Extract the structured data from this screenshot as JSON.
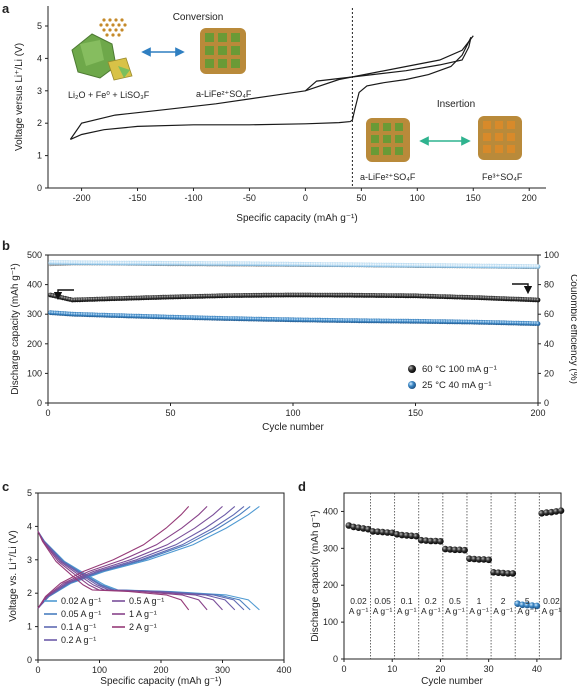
{
  "panels": [
    {
      "letter": "a",
      "chart_data": {
        "type": "line",
        "xlabel": "Specific capacity (mAh g⁻¹)",
        "ylabel": "Voltage versus Li⁺/Li (V)",
        "xlim": [
          -230,
          215
        ],
        "ylim": [
          0,
          5.6
        ],
        "xticks": [
          "-200",
          "-150",
          "-100",
          "-50",
          "0",
          "50",
          "100",
          "150",
          "200"
        ],
        "yticks": [
          "0",
          "1",
          "2",
          "3",
          "4",
          "5"
        ],
        "divider_x": 42,
        "labels": {
          "conversion": "Conversion",
          "insertion": "Insertion",
          "conv_products": "Li₂O + Fe⁰ + LiSO₃F",
          "conv_start": "a-LiFe²⁺SO₄F",
          "ins_start": "a-LiFe²⁺SO₄F",
          "ins_end": "Fe³⁺SO₄F"
        },
        "series": [
          {
            "segment": "conversion discharge",
            "x": [
              42,
              40,
              30,
              0,
              -50,
              -100,
              -150,
              -180,
              -200,
              -210
            ],
            "y": [
              2.1,
              2.05,
              2.02,
              1.98,
              1.95,
              1.95,
              1.9,
              1.8,
              1.65,
              1.5
            ]
          },
          {
            "segment": "conversion charge",
            "x": [
              -210,
              -200,
              -170,
              -130,
              -80,
              -30,
              0,
              30,
              60,
              90,
              120,
              140,
              150
            ],
            "y": [
              1.5,
              2.0,
              2.25,
              2.4,
              2.6,
              2.85,
              3.0,
              3.35,
              3.55,
              3.75,
              3.95,
              4.25,
              4.7
            ]
          },
          {
            "segment": "insertion charge",
            "x": [
              42,
              44,
              48,
              55,
              70,
              90,
              110,
              130,
              140,
              148
            ],
            "y": [
              2.1,
              2.4,
              2.95,
              3.15,
              3.25,
              3.35,
              3.5,
              3.75,
              4.1,
              4.65
            ]
          },
          {
            "segment": "insertion discharge",
            "x": [
              148,
              146,
              140,
              120,
              90,
              60,
              30,
              10,
              0
            ],
            "y": [
              4.65,
              4.35,
              3.95,
              3.8,
              3.62,
              3.5,
              3.38,
              3.3,
              3.0
            ]
          }
        ]
      }
    },
    {
      "letter": "b",
      "chart_data": {
        "type": "scatter",
        "xlabel": "Cycle number",
        "ylabel": "Discharge capacity (mAh g⁻¹)",
        "ylabel_right": "Coulombic efficiency (%)",
        "xlim": [
          0,
          200
        ],
        "ylim": [
          0,
          500
        ],
        "ylim_right": [
          0,
          100
        ],
        "xticks": [
          "0",
          "50",
          "100",
          "150",
          "200"
        ],
        "yticks": [
          "0",
          "100",
          "200",
          "300",
          "400",
          "500"
        ],
        "yticks_right": [
          "0",
          "20",
          "40",
          "60",
          "80",
          "100"
        ],
        "legend_position": "bottom-right",
        "series": [
          {
            "name": "60 °C 100 mA g⁻¹",
            "color": "#111111",
            "x": [
              1,
              10,
              25,
              50,
              75,
              100,
              125,
              150,
              175,
              200
            ],
            "capacity": [
              365,
              348,
              352,
              358,
              363,
              365,
              364,
              362,
              356,
              348
            ],
            "efficiency": [
              94.0,
              94.5,
              94.5,
              94.0,
              93.8,
              93.5,
              93.3,
              92.8,
              92.5,
              92.0
            ]
          },
          {
            "name": "25 °C 40 mA g⁻¹",
            "color": "#3b86c4",
            "x": [
              1,
              10,
              25,
              50,
              75,
              100,
              125,
              150,
              175,
              200
            ],
            "capacity": [
              305,
              300,
              296,
              290,
              285,
              281,
              278,
              276,
              273,
              268
            ],
            "efficiency": [
              95.0,
              94.8,
              94.6,
              94.4,
              94.2,
              93.8,
              93.4,
              93.0,
              92.6,
              92.2
            ]
          }
        ]
      }
    },
    {
      "letter": "c",
      "chart_data": {
        "type": "line",
        "xlabel": "Specific capacity (mAh g⁻¹)",
        "ylabel": "Voltage vs. Li⁺/Li (V)",
        "xlim": [
          0,
          400
        ],
        "ylim": [
          0,
          5
        ],
        "xticks": [
          "0",
          "100",
          "200",
          "300",
          "400"
        ],
        "yticks": [
          "0",
          "1",
          "2",
          "3",
          "4",
          "5"
        ],
        "series": [
          {
            "name": "0.02 A g⁻¹",
            "color": "#4f9ad2",
            "cap": 360
          },
          {
            "name": "0.05 A g⁻¹",
            "color": "#4a7fbf",
            "cap": 345
          },
          {
            "name": "0.1 A g⁻¹",
            "color": "#5f6ab3",
            "cap": 335
          },
          {
            "name": "0.2 A g⁻¹",
            "color": "#6c5ca8",
            "cap": 320
          },
          {
            "name": "0.5 A g⁻¹",
            "color": "#7a4f9a",
            "cap": 300
          },
          {
            "name": "1 A g⁻¹",
            "color": "#88438a",
            "cap": 275
          },
          {
            "name": "2 A g⁻¹",
            "color": "#963a78",
            "cap": 245
          }
        ]
      }
    },
    {
      "letter": "d",
      "chart_data": {
        "type": "scatter",
        "xlabel": "Cycle number",
        "ylabel": "Discharge capacity (mAh g⁻¹)",
        "xlim": [
          0,
          45
        ],
        "ylim": [
          0,
          450
        ],
        "xticks": [
          "0",
          "10",
          "20",
          "30",
          "40"
        ],
        "yticks": [
          "0",
          "100",
          "200",
          "300",
          "400"
        ],
        "groups": [
          {
            "rate": "0.02",
            "unit": "A g⁻¹",
            "cycles": [
              1,
              2,
              3,
              4,
              5
            ],
            "values": [
              362,
              358,
              356,
              354,
              352
            ],
            "color": "#111111"
          },
          {
            "rate": "0.05",
            "unit": "A g⁻¹",
            "cycles": [
              6,
              7,
              8,
              9,
              10
            ],
            "values": [
              346,
              345,
              344,
              343,
              342
            ],
            "color": "#111111"
          },
          {
            "rate": "0.1",
            "unit": "A g⁻¹",
            "cycles": [
              11,
              12,
              13,
              14,
              15
            ],
            "values": [
              338,
              336,
              335,
              334,
              333
            ],
            "color": "#111111"
          },
          {
            "rate": "0.2",
            "unit": "A g⁻¹",
            "cycles": [
              16,
              17,
              18,
              19,
              20
            ],
            "values": [
              322,
              321,
              320,
              320,
              319
            ],
            "color": "#111111"
          },
          {
            "rate": "0.5",
            "unit": "A g⁻¹",
            "cycles": [
              21,
              22,
              23,
              24,
              25
            ],
            "values": [
              298,
              297,
              296,
              296,
              295
            ],
            "color": "#111111"
          },
          {
            "rate": "1",
            "unit": "A g⁻¹",
            "cycles": [
              26,
              27,
              28,
              29,
              30
            ],
            "values": [
              272,
              271,
              270,
              270,
              269
            ],
            "color": "#111111"
          },
          {
            "rate": "2",
            "unit": "A g⁻¹",
            "cycles": [
              31,
              32,
              33,
              34,
              35
            ],
            "values": [
              235,
              234,
              233,
              232,
              232
            ],
            "color": "#111111"
          },
          {
            "rate": "5",
            "unit": "A g⁻¹",
            "cycles": [
              36,
              37,
              38,
              39,
              40
            ],
            "values": [
              150,
              147,
              146,
              145,
              144
            ],
            "color": "#3b86c4"
          },
          {
            "rate": "0.02",
            "unit": "A g⁻¹",
            "cycles": [
              41,
              42,
              43,
              44,
              45
            ],
            "values": [
              395,
              397,
              398,
              400,
              402
            ],
            "color": "#111111"
          }
        ]
      }
    }
  ]
}
